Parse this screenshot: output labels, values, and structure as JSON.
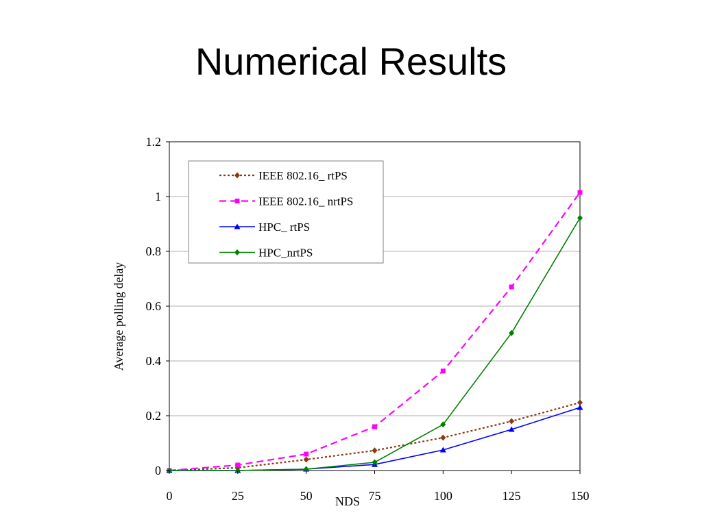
{
  "slide": {
    "title": "Numerical Results"
  },
  "chart_data": {
    "type": "line",
    "xlabel": "NDS",
    "ylabel": "Average polling delay",
    "x": [
      0,
      25,
      50,
      75,
      100,
      125,
      150
    ],
    "xlim": [
      0,
      150
    ],
    "ylim": [
      0,
      1.2
    ],
    "x_ticks": [
      "0",
      "25",
      "50",
      "75",
      "100",
      "125",
      "150"
    ],
    "y_ticks": [
      "0",
      "0.2",
      "0.4",
      "0.6",
      "0.8",
      "1",
      "1.2"
    ],
    "grid": "horizontal",
    "legend_position": "top-left",
    "series": [
      {
        "name": "IEEE 802.16_ rtPS",
        "values": [
          0,
          0.01,
          0.04,
          0.073,
          0.12,
          0.18,
          0.248
        ],
        "color": "#8B3A0F",
        "line_style": "dotted",
        "marker": "diamond"
      },
      {
        "name": "IEEE 802.16_ nrtPS",
        "values": [
          0,
          0.02,
          0.06,
          0.16,
          0.363,
          0.67,
          1.015
        ],
        "color": "#FF00FF",
        "line_style": "dashed",
        "marker": "square"
      },
      {
        "name": "HPC_ rtPS",
        "values": [
          0,
          0,
          0.005,
          0.022,
          0.075,
          0.15,
          0.23
        ],
        "color": "#0000FF",
        "line_style": "solid",
        "marker": "triangle"
      },
      {
        "name": "HPC_nrtPS",
        "values": [
          0,
          0,
          0.005,
          0.03,
          0.168,
          0.502,
          0.922
        ],
        "color": "#008000",
        "line_style": "solid",
        "marker": "diamond"
      }
    ]
  }
}
